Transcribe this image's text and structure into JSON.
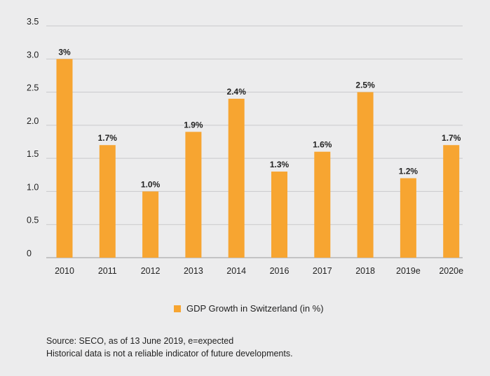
{
  "colors": {
    "bar": "#f7a531",
    "grid": "#c9c9cb",
    "axis": "#9a9a9c"
  },
  "chart_data": {
    "type": "bar",
    "categories": [
      "2010",
      "2011",
      "2012",
      "2013",
      "2014",
      "2016",
      "2017",
      "2018",
      "2019e",
      "2020e"
    ],
    "values": [
      3.0,
      1.7,
      1.0,
      1.9,
      2.4,
      1.3,
      1.6,
      2.5,
      1.2,
      1.7
    ],
    "data_labels": [
      "3%",
      "1.7%",
      "1.0%",
      "1.9%",
      "2.4%",
      "1.3%",
      "1.6%",
      "2.5%",
      "1.2%",
      "1.7%"
    ],
    "y_ticks": [
      0,
      0.5,
      1.0,
      1.5,
      2.0,
      2.5,
      3.0,
      3.5
    ],
    "y_tick_labels": [
      "0",
      "0.5",
      "1.0",
      "1.5",
      "2.0",
      "2.5",
      "3.0",
      "3.5"
    ],
    "ylim": [
      0,
      3.5
    ],
    "title": "",
    "xlabel": "",
    "ylabel": "",
    "grid": true,
    "legend_position": "bottom-center"
  },
  "legend": {
    "label": "GDP Growth in Switzerland (in %)"
  },
  "footer": {
    "source": "Source: SECO, as of 13 June 2019, e=expected",
    "disclaimer": "Historical data is not a reliable indicator of future developments."
  }
}
